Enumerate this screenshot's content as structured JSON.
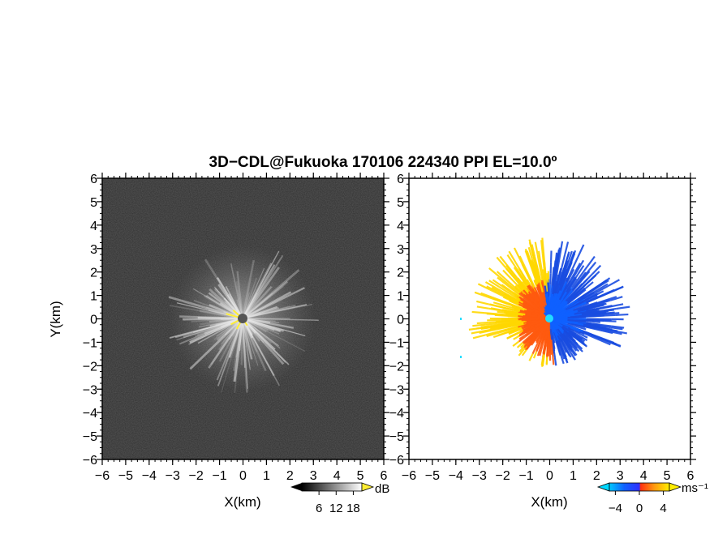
{
  "chart_data": [
    {
      "type": "heatmap",
      "title": "3D−CDL@Fukuoka 170106 224340 PPI EL=10.0º",
      "xlabel": "X(km)",
      "ylabel": "Y(km)",
      "xlim": [
        -6,
        6
      ],
      "ylim": [
        -6,
        6
      ],
      "ticks": [
        -6,
        -5,
        -4,
        -3,
        -2,
        -1,
        0,
        1,
        2,
        3,
        4,
        5,
        6
      ],
      "tick_labels": [
        "−6",
        "−5",
        "−4",
        "−3",
        "−2",
        "−1",
        "0",
        "1",
        "2",
        "3",
        "4",
        "5",
        "6"
      ],
      "field": "SNR",
      "colorbar": {
        "unit": "dB",
        "ticks": [
          6,
          12,
          18
        ],
        "tick_labels": [
          "6",
          "12",
          "18"
        ],
        "colormap": "grayscale"
      },
      "extent_km": 3.3,
      "colors": {
        "background": "#2e2e2e",
        "speckle": "#4a4a4a",
        "center": "#555555",
        "near_echo": "#ffee33"
      }
    },
    {
      "type": "heatmap",
      "xlabel": "X(km)",
      "ylabel": "",
      "xlim": [
        -6,
        6
      ],
      "ylim": [
        -6,
        6
      ],
      "ticks": [
        -6,
        -5,
        -4,
        -3,
        -2,
        -1,
        0,
        1,
        2,
        3,
        4,
        5,
        6
      ],
      "tick_labels": [
        "−6",
        "−5",
        "−4",
        "−3",
        "−2",
        "−1",
        "0",
        "1",
        "2",
        "3",
        "4",
        "5",
        "6"
      ],
      "field": "Doppler velocity",
      "colorbar": {
        "unit": "ms⁻¹",
        "ticks": [
          -4,
          0,
          4
        ],
        "tick_labels": [
          "−4",
          "0",
          "4"
        ],
        "colormap": "blue-cyan-red-yellow"
      },
      "extent_km": 3.5,
      "colors": {
        "away_west": "#ffd700",
        "mid_west": "#ff5a10",
        "toward_east": "#1060ff",
        "far_east": "#1a4de0",
        "center": "#22ddff"
      }
    }
  ]
}
